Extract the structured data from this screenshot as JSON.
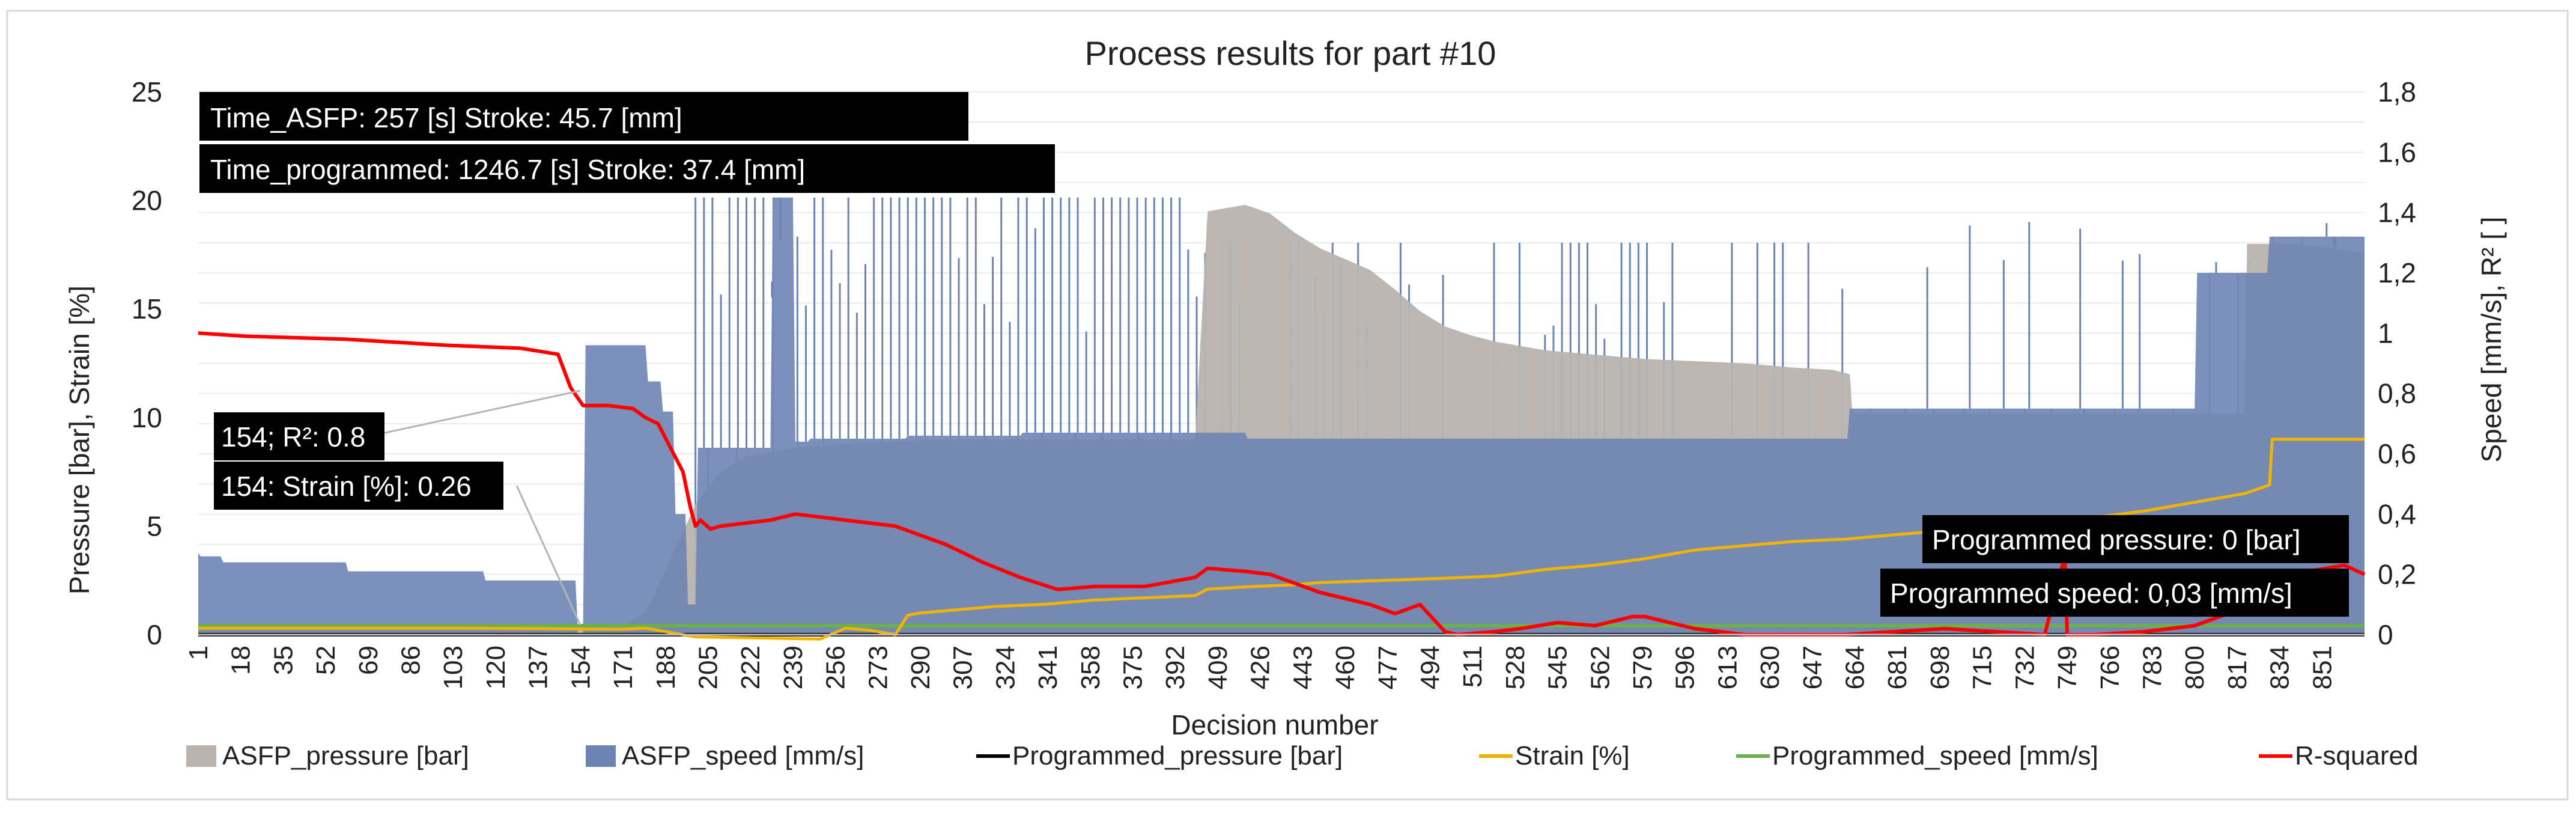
{
  "chart_data": {
    "type": "area",
    "title": "Process results for part #10",
    "xlabel": "Decision number",
    "ylabel_left": "Pressure [bar], Strain [%]",
    "ylabel_right": "Speed [mm/s], R² [ ]",
    "ylim_left": [
      0,
      25
    ],
    "ylim_right": [
      0,
      1.8
    ],
    "xlim": [
      1,
      868
    ],
    "left_ticks": [
      "0",
      "5",
      "10",
      "15",
      "20",
      "25"
    ],
    "right_ticks": [
      "0",
      "0,2",
      "0,4",
      "0,6",
      "0,8",
      "1",
      "1,2",
      "1,4",
      "1,6",
      "1,8"
    ],
    "x_tick_labels": [
      "1",
      "18",
      "35",
      "52",
      "69",
      "86",
      "103",
      "120",
      "137",
      "154",
      "171",
      "188",
      "205",
      "222",
      "239",
      "256",
      "273",
      "290",
      "307",
      "324",
      "341",
      "358",
      "375",
      "392",
      "409",
      "426",
      "443",
      "460",
      "477",
      "494",
      "511",
      "528",
      "545",
      "562",
      "579",
      "596",
      "613",
      "630",
      "647",
      "664",
      "681",
      "698",
      "715",
      "732",
      "749",
      "766",
      "783",
      "800",
      "817",
      "834",
      "851"
    ],
    "grid": true,
    "legend_position": "bottom",
    "legend": [
      {
        "label": "ASFP_pressure [bar]",
        "color": "#b8b3af",
        "kind": "area"
      },
      {
        "label": "ASFP_speed [mm/s]",
        "color": "#6d84b3",
        "kind": "area"
      },
      {
        "label": "Programmed_pressure [bar]",
        "color": "#000000",
        "kind": "line"
      },
      {
        "label": "Strain [%]",
        "color": "#f0b400",
        "kind": "line"
      },
      {
        "label": "Programmed_speed [mm/s]",
        "color": "#6ab04c",
        "kind": "line"
      },
      {
        "label": "R-squared",
        "color": "#ff0000",
        "kind": "line"
      }
    ],
    "series": [
      {
        "name": "ASFP_pressure [bar]",
        "axis": "left",
        "kind": "area",
        "x": [
          1,
          150,
          151,
          155,
          170,
          180,
          190,
          200,
          210,
          220,
          240,
          260,
          280,
          300,
          330,
          360,
          390,
          400,
          405,
          410,
          420,
          430,
          440,
          450,
          460,
          470,
          480,
          490,
          500,
          510,
          520,
          540,
          560,
          580,
          600,
          620,
          640,
          655,
          662,
          663,
          680,
          700,
          720,
          740,
          760,
          780,
          800,
          810,
          820,
          821,
          830,
          840,
          855,
          868
        ],
        "values": [
          0.4,
          0.4,
          0.3,
          0.3,
          0.3,
          1.0,
          3.5,
          6.0,
          7.5,
          8.2,
          8.6,
          8.8,
          8.9,
          9.0,
          9.0,
          9.0,
          9.0,
          9.0,
          19.5,
          19.6,
          19.8,
          19.4,
          18.5,
          17.8,
          17.3,
          16.8,
          15.9,
          14.9,
          14.2,
          13.8,
          13.5,
          13.1,
          12.9,
          12.7,
          12.6,
          12.5,
          12.3,
          12.2,
          12.0,
          10.2,
          10.2,
          10.2,
          10.2,
          10.2,
          10.2,
          10.2,
          10.2,
          10.2,
          10.2,
          18.0,
          18.0,
          18.0,
          17.8,
          17.6
        ],
        "color": "#b8b3af"
      },
      {
        "name": "ASFP_speed [mm/s]",
        "axis": "right",
        "kind": "area",
        "x": [
          1,
          2,
          10,
          11,
          60,
          61,
          115,
          116,
          152,
          153,
          155,
          156,
          180,
          181,
          186,
          187,
          191,
          192,
          196,
          197,
          200,
          201,
          230,
          231,
          239,
          240,
          245,
          246,
          284,
          285,
          330,
          331,
          420,
          421,
          661,
          662,
          700,
          800,
          801,
          829,
          830,
          868
        ],
        "values": [
          0.27,
          0.26,
          0.26,
          0.24,
          0.24,
          0.21,
          0.21,
          0.18,
          0.18,
          0.0,
          0.0,
          0.96,
          0.96,
          0.84,
          0.84,
          0.74,
          0.74,
          0.4,
          0.4,
          0.1,
          0.1,
          0.62,
          0.62,
          1.45,
          1.45,
          0.64,
          0.64,
          0.65,
          0.65,
          0.66,
          0.66,
          0.67,
          0.67,
          0.65,
          0.65,
          0.75,
          0.75,
          0.75,
          1.2,
          1.2,
          1.32,
          1.32
        ],
        "color": "#6d84b3"
      },
      {
        "name": "Programmed_pressure [bar]",
        "axis": "left",
        "kind": "line",
        "x": [
          1,
          868
        ],
        "values": [
          0,
          0
        ],
        "color": "#000000"
      },
      {
        "name": "Strain [%]",
        "axis": "left",
        "kind": "line",
        "x": [
          1,
          100,
          150,
          154,
          170,
          180,
          200,
          250,
          260,
          270,
          280,
          285,
          290,
          300,
          320,
          340,
          360,
          380,
          400,
          405,
          420,
          440,
          450,
          500,
          520,
          540,
          560,
          580,
          600,
          620,
          640,
          660,
          680,
          700,
          720,
          740,
          760,
          780,
          800,
          820,
          830,
          831,
          868
        ],
        "values": [
          0.3,
          0.3,
          0.27,
          0.26,
          0.25,
          0.3,
          -0.1,
          -0.2,
          0.3,
          0.2,
          0.0,
          0.9,
          1.0,
          1.1,
          1.3,
          1.4,
          1.6,
          1.7,
          1.8,
          2.1,
          2.2,
          2.3,
          2.4,
          2.6,
          2.7,
          3.0,
          3.2,
          3.5,
          3.9,
          4.1,
          4.3,
          4.4,
          4.6,
          4.8,
          5.0,
          5.2,
          5.4,
          5.7,
          6.1,
          6.5,
          6.9,
          9.0,
          9.0
        ],
        "color": "#f0b400"
      },
      {
        "name": "Programmed_speed [mm/s]",
        "axis": "right",
        "kind": "line",
        "x": [
          1,
          868
        ],
        "values": [
          0.03,
          0.03
        ],
        "color": "#6ab04c"
      },
      {
        "name": "R-squared",
        "axis": "right",
        "kind": "line",
        "x": [
          1,
          20,
          60,
          100,
          130,
          145,
          150,
          155,
          165,
          175,
          180,
          185,
          190,
          195,
          198,
          200,
          202,
          206,
          210,
          230,
          240,
          260,
          280,
          290,
          300,
          315,
          330,
          345,
          360,
          380,
          400,
          405,
          420,
          430,
          450,
          470,
          480,
          490,
          500,
          505,
          520,
          530,
          545,
          560,
          575,
          580,
          600,
          620,
          640,
          660,
          680,
          700,
          720,
          740,
          748,
          749,
          760,
          780,
          800,
          820,
          830,
          860,
          868
        ],
        "values": [
          1.0,
          0.99,
          0.98,
          0.96,
          0.95,
          0.93,
          0.82,
          0.76,
          0.76,
          0.75,
          0.72,
          0.7,
          0.62,
          0.54,
          0.42,
          0.36,
          0.38,
          0.35,
          0.36,
          0.38,
          0.4,
          0.38,
          0.36,
          0.33,
          0.3,
          0.24,
          0.19,
          0.15,
          0.16,
          0.16,
          0.19,
          0.22,
          0.21,
          0.2,
          0.14,
          0.1,
          0.07,
          0.1,
          0.01,
          0.0,
          0.01,
          0.02,
          0.04,
          0.03,
          0.06,
          0.06,
          0.02,
          0.0,
          0.0,
          0.0,
          0.01,
          0.02,
          0.01,
          0.0,
          0.26,
          0.0,
          0.0,
          0.01,
          0.03,
          0.09,
          0.19,
          0.23,
          0.2
        ],
        "color": "#ff0000"
      }
    ],
    "annotations": [
      {
        "text": "Time_ASFP: 257 [s] Stroke: 45.7 [mm]"
      },
      {
        "text": "Time_programmed: 1246.7 [s] Stroke: 37.4 [mm]"
      },
      {
        "text": "154; R²: 0.8"
      },
      {
        "text": "154: Strain [%]: 0.26"
      },
      {
        "text": "Programmed pressure: 0 [bar]"
      },
      {
        "text": "Programmed speed: 0,03 [mm/s]"
      }
    ]
  }
}
